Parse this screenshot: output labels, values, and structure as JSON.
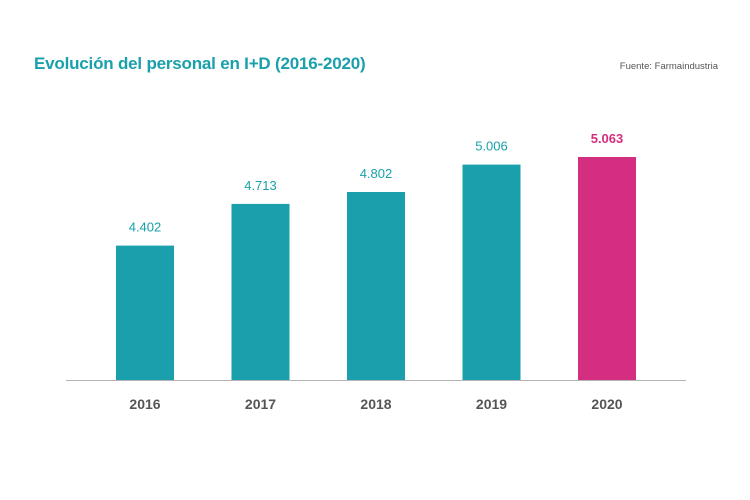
{
  "header": {
    "title": "Evolución del personal en I+D (2016-2020)",
    "source": "Fuente: Farmaindustria"
  },
  "colors": {
    "accent": "#1aa0ad",
    "highlight": "#d42e80",
    "axis": "#b4b4b4",
    "tick_text": "#555555"
  },
  "chart_data": {
    "type": "bar",
    "title": "Evolución del personal en I+D (2016-2020)",
    "xlabel": "",
    "ylabel": "",
    "categories": [
      "2016",
      "2017",
      "2018",
      "2019",
      "2020"
    ],
    "values": [
      4402,
      4713,
      4802,
      5006,
      5063
    ],
    "value_labels": [
      "4.402",
      "4.713",
      "4.802",
      "5.006",
      "5.063"
    ],
    "highlighted_category": "2020",
    "ylim": [
      3400,
      5063
    ],
    "grid": false,
    "legend": "none"
  }
}
